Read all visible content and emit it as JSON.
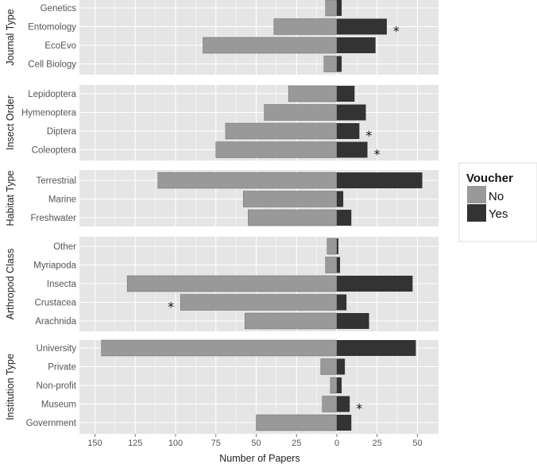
{
  "chart_data": {
    "type": "bar",
    "orientation": "horizontal-diverging",
    "xlabel": "Number of Papers",
    "xlim": [
      -155,
      57
    ],
    "x_ticks": [
      -150,
      -125,
      -100,
      -75,
      -50,
      -25,
      0,
      25,
      50
    ],
    "x_tick_labels": [
      "150",
      "125",
      "100",
      "75",
      "50",
      "25",
      "0",
      "25",
      "50"
    ],
    "legend": {
      "title": "Voucher",
      "position": "right",
      "entries": [
        {
          "label": "No",
          "color": "#999999"
        },
        {
          "label": "Yes",
          "color": "#333333"
        }
      ]
    },
    "colors": {
      "no": "#999999",
      "yes": "#333333",
      "panel": "#e5e5e5",
      "grid": "#ffffff"
    },
    "facets": [
      {
        "label": "Journal Type",
        "categories": [
          {
            "name": "Genetics",
            "no": 7,
            "yes": 3,
            "star": false
          },
          {
            "name": "Entomology",
            "no": 39,
            "yes": 31,
            "star": true
          },
          {
            "name": "EcoEvo",
            "no": 83,
            "yes": 24,
            "star": false
          },
          {
            "name": "Cell Biology",
            "no": 8,
            "yes": 3,
            "star": false
          }
        ]
      },
      {
        "label": "Insect Order",
        "categories": [
          {
            "name": "Lepidoptera",
            "no": 30,
            "yes": 11,
            "star": false
          },
          {
            "name": "Hymenoptera",
            "no": 45,
            "yes": 18,
            "star": false
          },
          {
            "name": "Diptera",
            "no": 69,
            "yes": 14,
            "star": true
          },
          {
            "name": "Coleoptera",
            "no": 75,
            "yes": 19,
            "star": true
          }
        ]
      },
      {
        "label": "Habitat Type",
        "categories": [
          {
            "name": "Terrestrial",
            "no": 111,
            "yes": 53,
            "star": false
          },
          {
            "name": "Marine",
            "no": 58,
            "yes": 4,
            "star": false
          },
          {
            "name": "Freshwater",
            "no": 55,
            "yes": 9,
            "star": false
          }
        ]
      },
      {
        "label": "Arthropod Class",
        "categories": [
          {
            "name": "Other",
            "no": 6,
            "yes": 1,
            "star": false
          },
          {
            "name": "Myriapoda",
            "no": 7,
            "yes": 2,
            "star": false
          },
          {
            "name": "Insecta",
            "no": 130,
            "yes": 47,
            "star": false
          },
          {
            "name": "Crustacea",
            "no": 97,
            "yes": 6,
            "star": true
          },
          {
            "name": "Arachnida",
            "no": 57,
            "yes": 20,
            "star": false
          }
        ]
      },
      {
        "label": "Institution Type",
        "categories": [
          {
            "name": "University",
            "no": 146,
            "yes": 49,
            "star": false
          },
          {
            "name": "Private",
            "no": 10,
            "yes": 5,
            "star": false
          },
          {
            "name": "Non-profit",
            "no": 4,
            "yes": 3,
            "star": false
          },
          {
            "name": "Museum",
            "no": 9,
            "yes": 8,
            "star": true
          },
          {
            "name": "Government",
            "no": 50,
            "yes": 9,
            "star": false
          }
        ]
      }
    ]
  }
}
